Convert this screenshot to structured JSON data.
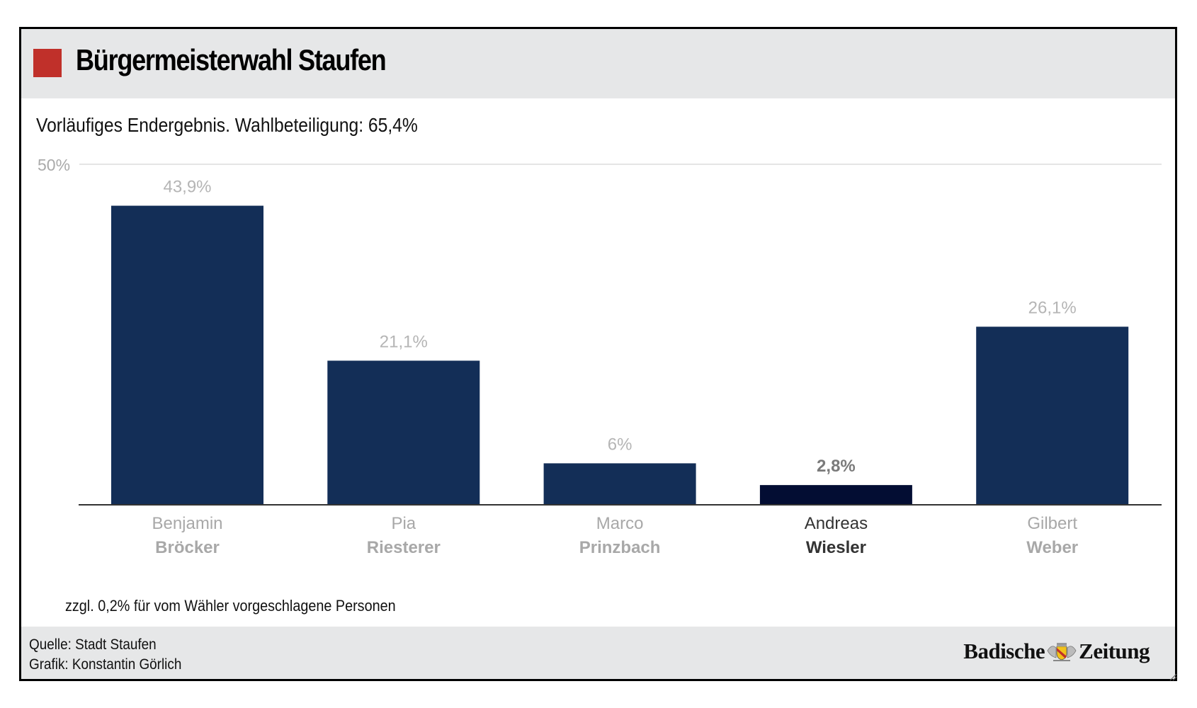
{
  "header": {
    "title": "Bürgermeisterwahl Staufen",
    "accent_color": "#c0302a"
  },
  "subtitle": "Vorläufiges Endergebnis. Wahlbeteiligung: 65,4%",
  "chart_data": {
    "type": "bar",
    "title": "Bürgermeisterwahl Staufen",
    "subtitle": "Vorläufiges Endergebnis. Wahlbeteiligung: 65,4%",
    "xlabel": "",
    "ylabel": "",
    "ylim": [
      0,
      50
    ],
    "y_ticks": [
      {
        "value": 50,
        "label": "50%"
      }
    ],
    "grid": true,
    "categories": [
      {
        "first": "Benjamin",
        "last": "Bröcker",
        "highlight": false
      },
      {
        "first": "Pia",
        "last": "Riesterer",
        "highlight": false
      },
      {
        "first": "Marco",
        "last": "Prinzbach",
        "highlight": false
      },
      {
        "first": "Andreas",
        "last": "Wiesler",
        "highlight": true
      },
      {
        "first": "Gilbert",
        "last": "Weber",
        "highlight": false
      }
    ],
    "values": [
      43.9,
      21.1,
      6,
      2.8,
      26.1
    ],
    "value_labels": [
      "43,9%",
      "21,1%",
      "6%",
      "2,8%",
      "26,1%"
    ],
    "colors": {
      "bar": "#132e57",
      "bar_highlight": "#030d33",
      "label": "#b5b5b5",
      "label_highlight": "#7a7a7a",
      "name": "#a8a8a8",
      "name_highlight": "#333333",
      "grid": "#e5e5e5",
      "axis": "#333333"
    }
  },
  "footnote": "zzgl. 0,2% für vom Wähler vorgeschlagene Personen",
  "footer": {
    "source": "Quelle: Stadt Staufen",
    "credit": "Grafik: Konstantin Görlich",
    "logo_left": "Badische",
    "logo_right": "Zeitung"
  }
}
